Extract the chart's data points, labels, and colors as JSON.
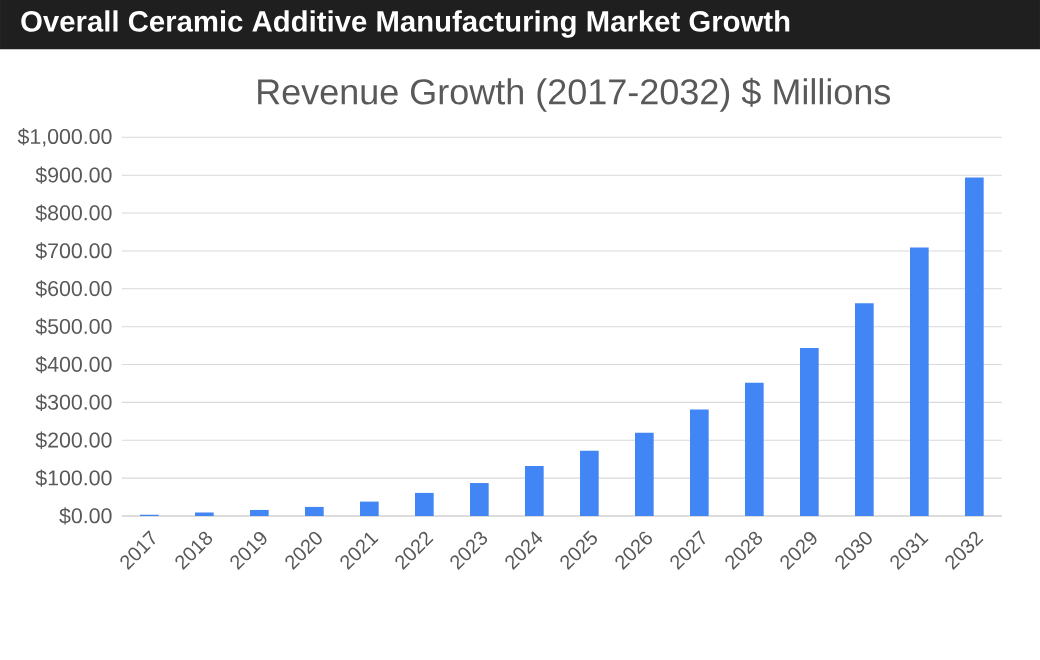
{
  "chart_data": {
    "type": "bar",
    "title": "Overall Ceramic Additive Manufacturing Market Growth",
    "subtitle": "Revenue Growth (2017-2032) $ Millions",
    "categories": [
      "2017",
      "2018",
      "2019",
      "2020",
      "2021",
      "2022",
      "2023",
      "2024",
      "2025",
      "2026",
      "2027",
      "2028",
      "2029",
      "2030",
      "2031",
      "2032"
    ],
    "values": [
      3,
      9,
      16,
      24,
      38,
      61,
      87,
      132,
      172,
      220,
      281,
      352,
      444,
      562,
      709,
      894
    ],
    "color": "#4285f4",
    "ylim": [
      0,
      1000
    ],
    "yticks": [
      {
        "value": 0,
        "label": "$0.00"
      },
      {
        "value": 100,
        "label": "$100.00"
      },
      {
        "value": 200,
        "label": "$200.00"
      },
      {
        "value": 300,
        "label": "$300.00"
      },
      {
        "value": 400,
        "label": "$400.00"
      },
      {
        "value": 500,
        "label": "$500.00"
      },
      {
        "value": 600,
        "label": "$600.00"
      },
      {
        "value": 700,
        "label": "$700.00"
      },
      {
        "value": 800,
        "label": "$800.00"
      },
      {
        "value": 900,
        "label": "$900.00"
      },
      {
        "value": 1000,
        "label": "$1,000.00"
      }
    ],
    "grid": "y"
  }
}
